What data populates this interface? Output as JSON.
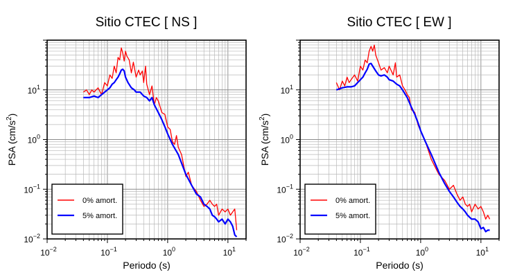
{
  "chart_data": [
    {
      "type": "line",
      "title": "Sitio CTEC [ NS ]",
      "xlabel": "Periodo (s)",
      "ylabel_main": "PSA (cm/s",
      "ylabel_sup": "2",
      "ylabel_end": ")",
      "xscale": "log",
      "yscale": "log",
      "xlim": [
        0.01,
        20
      ],
      "ylim": [
        0.01,
        100
      ],
      "grid": true,
      "legend_position": "bottom-left",
      "x_tick_labels": [
        {
          "base": "10",
          "exp": "−2"
        },
        {
          "base": "10",
          "exp": "−1"
        },
        {
          "base": "10",
          "exp": "0"
        },
        {
          "base": "10",
          "exp": "1"
        }
      ],
      "y_tick_labels": [
        {
          "base": "10",
          "exp": "−2"
        },
        {
          "base": "10",
          "exp": "−1"
        },
        {
          "base": "10",
          "exp": "0"
        },
        {
          "base": "10",
          "exp": "1"
        }
      ],
      "series": [
        {
          "name": "0% amort.",
          "color": "#ff0000",
          "x": [
            0.04,
            0.045,
            0.05,
            0.055,
            0.06,
            0.07,
            0.08,
            0.09,
            0.1,
            0.11,
            0.12,
            0.13,
            0.14,
            0.15,
            0.16,
            0.17,
            0.18,
            0.19,
            0.2,
            0.21,
            0.23,
            0.25,
            0.27,
            0.3,
            0.33,
            0.35,
            0.38,
            0.4,
            0.43,
            0.45,
            0.5,
            0.55,
            0.6,
            0.65,
            0.7,
            0.8,
            0.9,
            1.0,
            1.1,
            1.2,
            1.3,
            1.4,
            1.5,
            1.7,
            2.0,
            2.2,
            2.5,
            2.8,
            3.0,
            3.5,
            4.0,
            4.5,
            5.0,
            5.5,
            6.0,
            6.5,
            7.0,
            8.0,
            9.0,
            10.0,
            11.0,
            12.0,
            13.0,
            14.0
          ],
          "y": [
            9,
            10,
            8,
            10,
            9,
            11,
            8,
            14,
            12,
            20,
            17,
            30,
            22,
            45,
            40,
            70,
            55,
            38,
            60,
            48,
            40,
            22,
            36,
            18,
            25,
            20,
            24,
            14,
            30,
            13,
            8,
            12,
            5,
            7,
            6,
            3.5,
            3.2,
            1.8,
            1.6,
            0.9,
            0.8,
            1.2,
            0.7,
            0.5,
            0.18,
            0.22,
            0.12,
            0.1,
            0.09,
            0.06,
            0.045,
            0.05,
            0.06,
            0.05,
            0.045,
            0.05,
            0.03,
            0.04,
            0.035,
            0.04,
            0.03,
            0.035,
            0.04,
            0.015
          ]
        },
        {
          "name": "5% amort.",
          "color": "#0000ff",
          "x": [
            0.04,
            0.05,
            0.06,
            0.07,
            0.08,
            0.09,
            0.1,
            0.11,
            0.12,
            0.13,
            0.14,
            0.15,
            0.16,
            0.17,
            0.18,
            0.19,
            0.2,
            0.22,
            0.25,
            0.28,
            0.3,
            0.35,
            0.4,
            0.45,
            0.5,
            0.55,
            0.6,
            0.7,
            0.8,
            0.9,
            1.0,
            1.2,
            1.5,
            2.0,
            2.5,
            3.0,
            3.5,
            4.0,
            4.5,
            5.0,
            5.5,
            6.0,
            6.5,
            7.0,
            8.0,
            9.0,
            10.0,
            11.0,
            12.0,
            13.0,
            14.0
          ],
          "y": [
            7,
            7,
            7.5,
            7,
            8,
            9,
            10,
            11,
            13,
            14,
            16,
            18,
            21,
            25,
            26,
            24,
            18,
            14,
            11,
            10,
            9,
            9,
            7.5,
            7,
            6,
            7,
            5,
            3.5,
            2.5,
            1.8,
            1.3,
            0.8,
            0.5,
            0.2,
            0.12,
            0.08,
            0.07,
            0.05,
            0.045,
            0.04,
            0.03,
            0.028,
            0.025,
            0.022,
            0.025,
            0.02,
            0.025,
            0.022,
            0.018,
            0.012,
            0.011
          ]
        }
      ]
    },
    {
      "type": "line",
      "title": "Sitio CTEC [ EW ]",
      "xlabel": "Periodo (s)",
      "ylabel_main": "PSA (cm/s",
      "ylabel_sup": "2",
      "ylabel_end": ")",
      "xscale": "log",
      "yscale": "log",
      "xlim": [
        0.01,
        20
      ],
      "ylim": [
        0.01,
        100
      ],
      "grid": true,
      "legend_position": "bottom-left",
      "x_tick_labels": [
        {
          "base": "10",
          "exp": "−2"
        },
        {
          "base": "10",
          "exp": "−1"
        },
        {
          "base": "10",
          "exp": "0"
        },
        {
          "base": "10",
          "exp": "1"
        }
      ],
      "y_tick_labels": [
        {
          "base": "10",
          "exp": "−2"
        },
        {
          "base": "10",
          "exp": "−1"
        },
        {
          "base": "10",
          "exp": "0"
        },
        {
          "base": "10",
          "exp": "1"
        }
      ],
      "series": [
        {
          "name": "0% amort.",
          "color": "#ff0000",
          "x": [
            0.04,
            0.045,
            0.05,
            0.055,
            0.06,
            0.065,
            0.07,
            0.08,
            0.09,
            0.1,
            0.11,
            0.12,
            0.13,
            0.14,
            0.15,
            0.16,
            0.17,
            0.18,
            0.2,
            0.22,
            0.25,
            0.28,
            0.3,
            0.35,
            0.38,
            0.4,
            0.45,
            0.5,
            0.55,
            0.6,
            0.65,
            0.7,
            0.8,
            0.9,
            1.0,
            1.2,
            1.5,
            2.0,
            2.5,
            3.0,
            3.5,
            4.0,
            4.5,
            5.0,
            5.5,
            6.0,
            6.5,
            7.0,
            8.0,
            9.0,
            10.0,
            11.0,
            12.0,
            13.0,
            14.0
          ],
          "y": [
            14,
            10,
            15,
            12,
            18,
            14,
            16,
            20,
            15,
            30,
            25,
            40,
            35,
            60,
            75,
            60,
            80,
            50,
            35,
            25,
            28,
            22,
            30,
            20,
            35,
            18,
            20,
            12,
            10,
            8,
            7,
            4,
            3.5,
            2,
            1.5,
            0.9,
            0.4,
            0.2,
            0.15,
            0.1,
            0.12,
            0.08,
            0.06,
            0.07,
            0.05,
            0.045,
            0.05,
            0.035,
            0.05,
            0.04,
            0.045,
            0.035,
            0.025,
            0.03,
            0.025
          ]
        },
        {
          "name": "5% amort.",
          "color": "#0000ff",
          "x": [
            0.04,
            0.05,
            0.06,
            0.07,
            0.08,
            0.09,
            0.1,
            0.11,
            0.12,
            0.13,
            0.14,
            0.15,
            0.16,
            0.18,
            0.2,
            0.22,
            0.25,
            0.28,
            0.3,
            0.35,
            0.4,
            0.45,
            0.5,
            0.6,
            0.7,
            0.8,
            0.9,
            1.0,
            1.2,
            1.5,
            2.0,
            2.5,
            3.0,
            3.5,
            4.0,
            4.5,
            5.0,
            5.5,
            6.0,
            7.0,
            8.0,
            9.0,
            10.0,
            11.0,
            12.0,
            13.0,
            14.0
          ],
          "y": [
            10,
            11,
            11.5,
            11.5,
            12,
            14,
            16,
            18,
            22,
            26,
            33,
            34,
            30,
            24,
            20,
            19,
            20,
            18,
            16,
            15,
            13,
            12,
            10,
            7,
            4.5,
            3.2,
            2.2,
            1.5,
            0.9,
            0.5,
            0.22,
            0.13,
            0.09,
            0.07,
            0.055,
            0.045,
            0.04,
            0.035,
            0.03,
            0.025,
            0.025,
            0.022,
            0.016,
            0.017,
            0.014,
            0.015,
            0.015
          ]
        }
      ]
    }
  ]
}
